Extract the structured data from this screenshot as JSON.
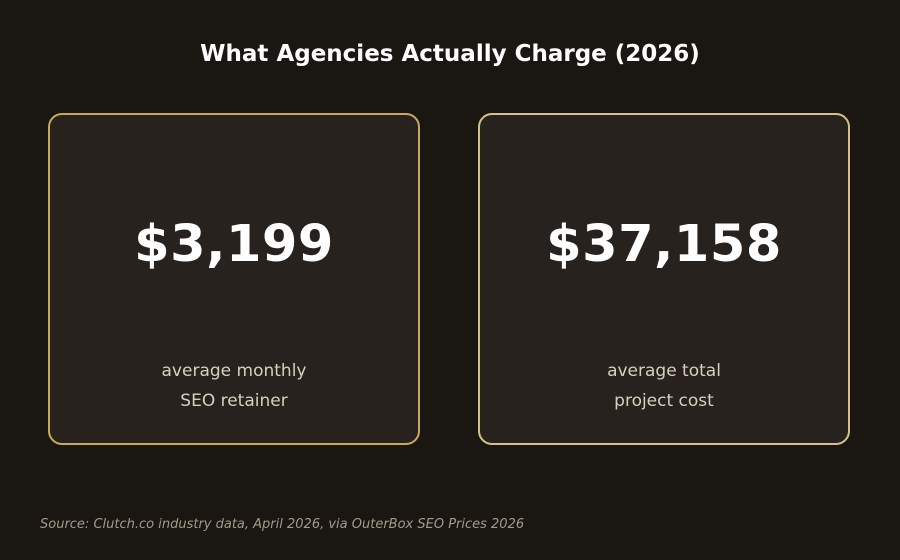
{
  "title": "What Agencies Actually Charge (2026)",
  "colors": {
    "background": "#1a1713",
    "card_background": "#27221e",
    "card_border_left": "#c9a85a",
    "card_border_right": "#d6c08a"
  },
  "stats": [
    {
      "value": "$3,199",
      "label_lines": [
        "average monthly",
        "SEO retainer"
      ]
    },
    {
      "value": "$37,158",
      "label_lines": [
        "average total",
        "project cost"
      ]
    }
  ],
  "source": "Source: Clutch.co industry data, April 2026, via OuterBox SEO Prices 2026"
}
